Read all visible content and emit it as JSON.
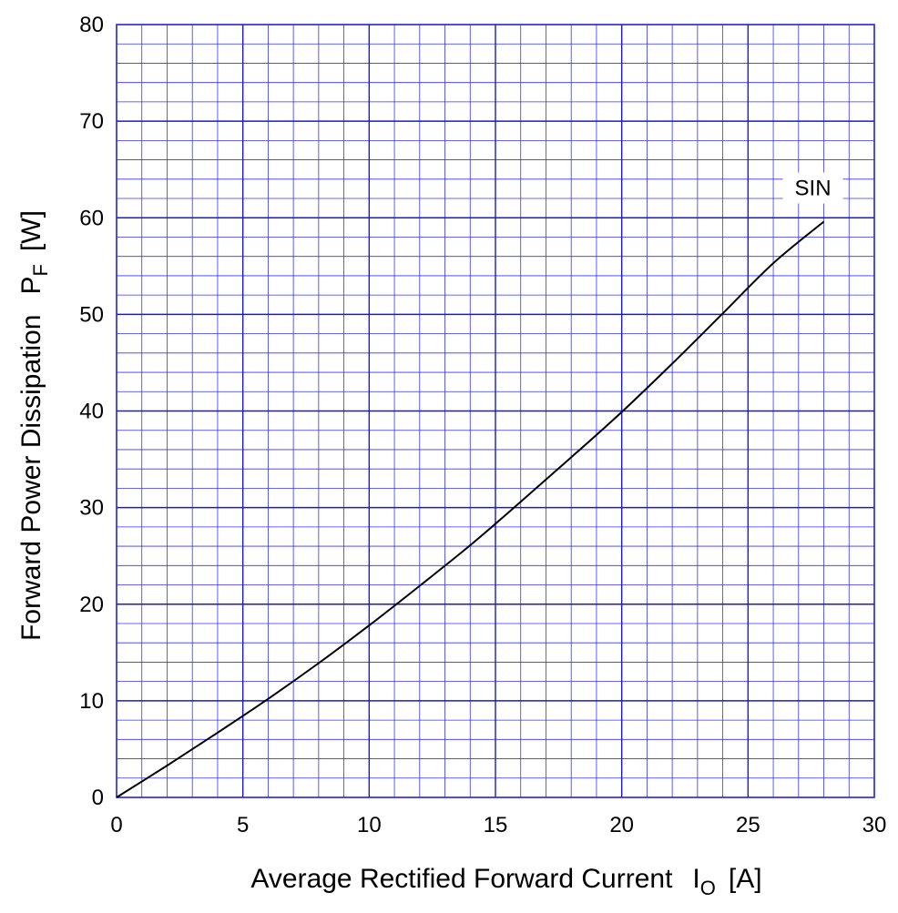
{
  "chart_data": {
    "type": "line",
    "xlabel": "Average Rectified Forward Current",
    "xlabel_symbol": "I",
    "xlabel_subscript": "O",
    "xlabel_unit": "[A]",
    "ylabel": "Forward Power Dissipation",
    "ylabel_symbol": "P",
    "ylabel_subscript": "F",
    "ylabel_unit": "[W]",
    "xlim": [
      0,
      30
    ],
    "ylim": [
      0,
      80
    ],
    "x_ticks": [
      "0",
      "5",
      "10",
      "15",
      "20",
      "25",
      "30"
    ],
    "y_ticks": [
      "0",
      "10",
      "20",
      "30",
      "40",
      "50",
      "60",
      "70",
      "80"
    ],
    "grid": true,
    "grid_color": "#3333ff",
    "line_color": "#000000",
    "series": [
      {
        "name": "SIN",
        "x": [
          0,
          2,
          4,
          6,
          8,
          10,
          12,
          14,
          16,
          18,
          20,
          22,
          24,
          26,
          28
        ],
        "y": [
          0,
          3.3,
          6.7,
          10.2,
          13.9,
          17.8,
          21.9,
          26.1,
          30.6,
          35.2,
          39.9,
          44.9,
          50.1,
          55.3,
          59.6
        ]
      }
    ]
  }
}
